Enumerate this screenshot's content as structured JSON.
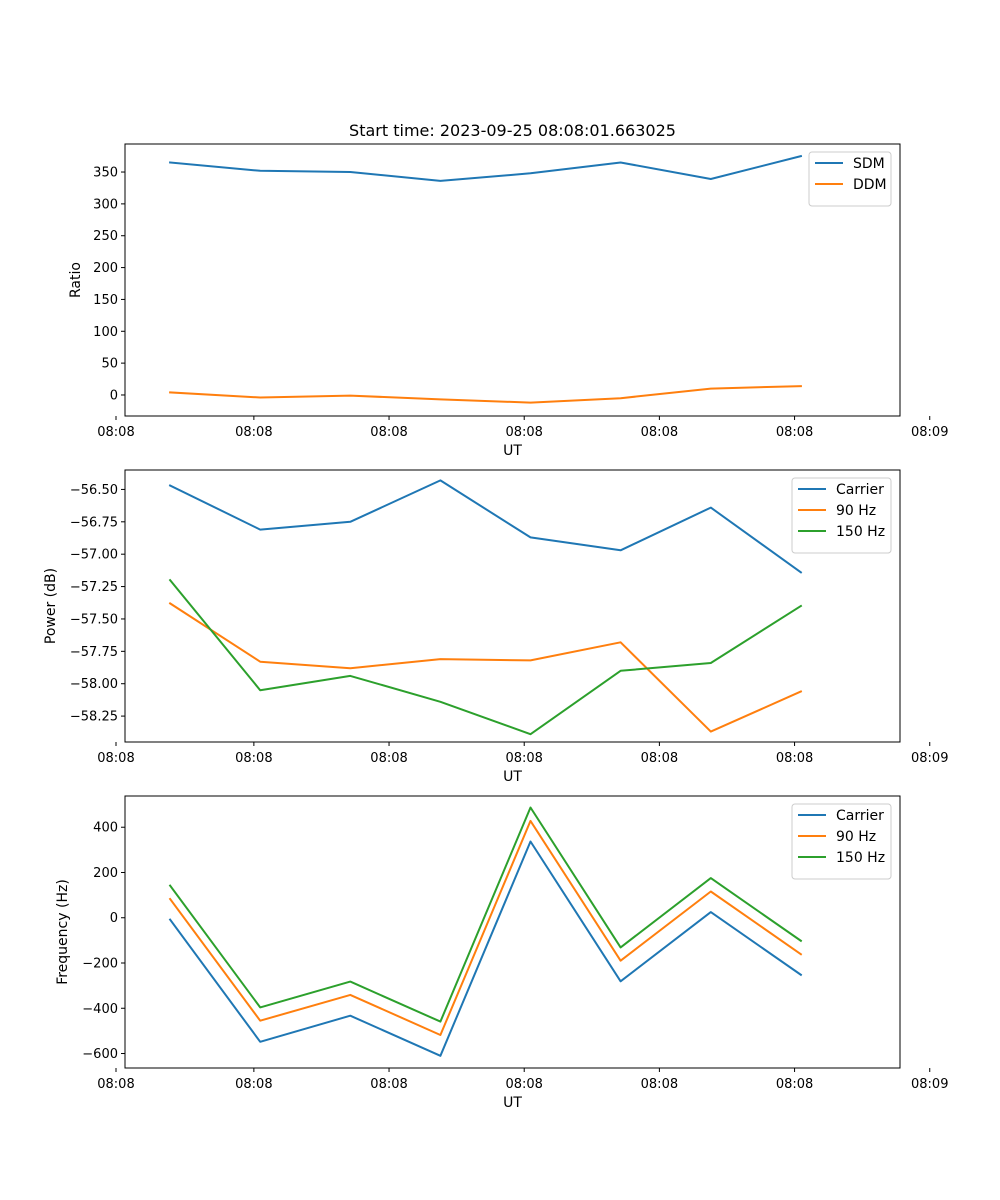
{
  "chart_data": [
    {
      "type": "line",
      "title": "Start time: 2023-09-25 08:08:01.663025",
      "xlabel": "UT",
      "ylabel": "Ratio",
      "x": [
        1,
        2,
        3,
        4,
        5,
        6,
        7,
        8
      ],
      "xlim": [
        0.5,
        9.1
      ],
      "x_ticks": [
        0.4,
        1.93,
        3.43,
        4.93,
        6.43,
        7.93,
        9.43
      ],
      "x_tick_labels": [
        "08:08",
        "08:08",
        "08:08",
        "08:08",
        "08:08",
        "08:08",
        "08:09"
      ],
      "ylim": [
        -33,
        394
      ],
      "y_ticks": [
        0,
        50,
        100,
        150,
        200,
        250,
        300,
        350
      ],
      "y_tick_labels": [
        "0",
        "50",
        "100",
        "150",
        "200",
        "250",
        "300",
        "350"
      ],
      "legend_position": "top-right",
      "series": [
        {
          "name": "SDM",
          "color": "#1f77b4",
          "values": [
            365,
            352,
            350,
            336,
            348,
            365,
            339,
            375
          ]
        },
        {
          "name": "DDM",
          "color": "#ff7f0e",
          "values": [
            4,
            -4,
            -1,
            -7,
            -12,
            -5,
            10,
            14
          ]
        }
      ]
    },
    {
      "type": "line",
      "title": "",
      "xlabel": "UT",
      "ylabel": "Power (dB)",
      "x": [
        1,
        2,
        3,
        4,
        5,
        6,
        7,
        8
      ],
      "xlim": [
        0.5,
        9.1
      ],
      "x_ticks": [
        0.4,
        1.93,
        3.43,
        4.93,
        6.43,
        7.93,
        9.43
      ],
      "x_tick_labels": [
        "08:08",
        "08:08",
        "08:08",
        "08:08",
        "08:08",
        "08:08",
        "08:09"
      ],
      "ylim": [
        -58.45,
        -56.35
      ],
      "y_ticks": [
        -56.5,
        -56.75,
        -57.0,
        -57.25,
        -57.5,
        -57.75,
        -58.0,
        -58.25
      ],
      "y_tick_labels": [
        "−56.50",
        "−56.75",
        "−57.00",
        "−57.25",
        "−57.50",
        "−57.75",
        "−58.00",
        "−58.25"
      ],
      "legend_position": "top-right",
      "series": [
        {
          "name": "Carrier",
          "color": "#1f77b4",
          "values": [
            -56.47,
            -56.81,
            -56.75,
            -56.43,
            -56.87,
            -56.97,
            -56.64,
            -57.14
          ]
        },
        {
          "name": "90 Hz",
          "color": "#ff7f0e",
          "values": [
            -57.38,
            -57.83,
            -57.88,
            -57.81,
            -57.82,
            -57.68,
            -58.37,
            -58.06
          ]
        },
        {
          "name": "150 Hz",
          "color": "#2ca02c",
          "values": [
            -57.2,
            -58.05,
            -57.94,
            -58.14,
            -58.39,
            -57.9,
            -57.84,
            -57.4
          ]
        }
      ]
    },
    {
      "type": "line",
      "title": "",
      "xlabel": "UT",
      "ylabel": "Frequency (Hz)",
      "x": [
        1,
        2,
        3,
        4,
        5,
        6,
        7,
        8
      ],
      "xlim": [
        0.5,
        9.1
      ],
      "x_ticks": [
        0.4,
        1.93,
        3.43,
        4.93,
        6.43,
        7.93,
        9.43
      ],
      "x_tick_labels": [
        "08:08",
        "08:08",
        "08:08",
        "08:08",
        "08:08",
        "08:08",
        "08:09"
      ],
      "ylim": [
        -664,
        538
      ],
      "y_ticks": [
        400,
        200,
        0,
        -200,
        -400,
        -600
      ],
      "y_tick_labels": [
        "400",
        "200",
        "0",
        "−200",
        "−400",
        "−600"
      ],
      "legend_position": "top-right",
      "series": [
        {
          "name": "Carrier",
          "color": "#1f77b4",
          "values": [
            -8,
            -548,
            -433,
            -610,
            337,
            -281,
            25,
            -252
          ]
        },
        {
          "name": "90 Hz",
          "color": "#ff7f0e",
          "values": [
            83,
            -455,
            -341,
            -518,
            428,
            -190,
            116,
            -161
          ]
        },
        {
          "name": "150 Hz",
          "color": "#2ca02c",
          "values": [
            142,
            -396,
            -282,
            -459,
            487,
            -131,
            175,
            -102
          ]
        }
      ]
    }
  ]
}
